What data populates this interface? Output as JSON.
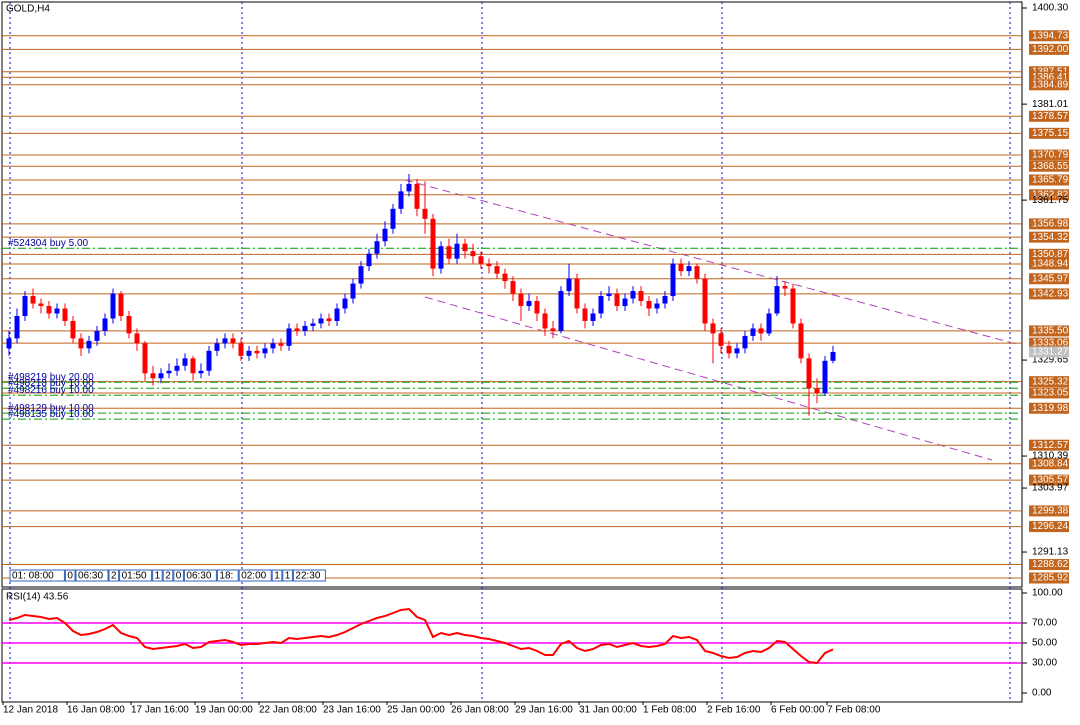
{
  "widget": [
    "01: 08:00",
    "0",
    "06:30",
    "2",
    "01:50",
    "1",
    "2",
    "0",
    "06:30",
    "18:",
    "02:00",
    "1",
    "1",
    "22:30"
  ],
  "chart_data": [
    {
      "type": "candlestick",
      "title": "GOLD,H4",
      "categories": [
        "12 Jan 2018",
        null,
        null,
        null,
        null,
        null,
        null,
        null,
        "16 Jan 08:00",
        null,
        null,
        null,
        null,
        null,
        null,
        null,
        "17 Jan 16:00",
        null,
        null,
        null,
        null,
        null,
        null,
        null,
        "19 Jan 00:00",
        null,
        null,
        null,
        null,
        null,
        null,
        null,
        "22 Jan 08:00",
        null,
        null,
        null,
        null,
        null,
        null,
        null,
        "23 Jan 16:00",
        null,
        null,
        null,
        null,
        null,
        null,
        null,
        "25 Jan 00:00",
        null,
        null,
        null,
        null,
        null,
        null,
        null,
        "26 Jan 08:00",
        null,
        null,
        null,
        null,
        null,
        null,
        null,
        "29 Jan 16:00",
        null,
        null,
        null,
        null,
        null,
        null,
        null,
        "31 Jan 00:00",
        null,
        null,
        null,
        null,
        null,
        null,
        null,
        "1 Feb 08:00",
        null,
        null,
        null,
        null,
        null,
        null,
        null,
        "2 Feb 16:00",
        null,
        null,
        null,
        null,
        null,
        null,
        null,
        "6 Feb 00:00",
        null,
        null,
        null,
        null,
        null,
        null,
        "7 Feb 08:00"
      ],
      "open": [
        1332.0,
        1334.0,
        1338.5,
        1342.5,
        1341.0,
        1340.5,
        1339.0,
        1340.0,
        1337.5,
        1334.0,
        1332.0,
        1333.5,
        1335.5,
        1338.0,
        1343.0,
        1338.5,
        1335.0,
        1333.0,
        1327.0,
        1326.0,
        1327.0,
        1327.5,
        1328.5,
        1330.0,
        1327.0,
        1327.5,
        1331.5,
        1333.0,
        1334.0,
        1333.0,
        1330.5,
        1331.5,
        1331.0,
        1332.0,
        1333.0,
        1332.5,
        1336.0,
        1335.5,
        1336.5,
        1337.0,
        1338.0,
        1337.5,
        1340.0,
        1342.0,
        1345.0,
        1348.5,
        1351.0,
        1353.5,
        1356.0,
        1360.0,
        1363.5,
        1365.0,
        1360.0,
        1358.0,
        1348.0,
        1352.5,
        1350.0,
        1353.0,
        1351.5,
        1350.5,
        1349.0,
        1348.5,
        1347.0,
        1345.5,
        1343.0,
        1340.5,
        1341.5,
        1339.0,
        1336.0,
        1335.5,
        1343.5,
        1346.0,
        1340.0,
        1337.5,
        1339.0,
        1342.5,
        1343.0,
        1340.5,
        1342.0,
        1343.5,
        1341.5,
        1340.0,
        1341.0,
        1342.5,
        1349.0,
        1347.5,
        1348.5,
        1346.0,
        1337.0,
        1335.0,
        1332.5,
        1331.0,
        1332.0,
        1334.5,
        1336.0,
        1335.0,
        1339.0,
        1344.5,
        1344.0,
        1337.0,
        1330.0,
        1324.0,
        1323.0,
        1329.5
      ],
      "high": [
        1335.5,
        1340.0,
        1343.5,
        1344.0,
        1342.0,
        1341.5,
        1341.0,
        1341.0,
        1338.5,
        1335.0,
        1334.5,
        1336.5,
        1339.0,
        1344.0,
        1343.5,
        1339.5,
        1336.0,
        1333.5,
        1328.5,
        1328.0,
        1329.0,
        1330.0,
        1331.0,
        1330.5,
        1329.0,
        1332.5,
        1334.0,
        1335.0,
        1335.0,
        1334.0,
        1332.5,
        1332.5,
        1333.0,
        1334.0,
        1334.0,
        1337.0,
        1337.0,
        1337.5,
        1338.0,
        1339.0,
        1339.0,
        1341.0,
        1343.0,
        1346.0,
        1349.5,
        1352.0,
        1355.0,
        1357.5,
        1361.0,
        1365.0,
        1367.0,
        1366.0,
        1365.5,
        1359.0,
        1353.5,
        1354.0,
        1355.0,
        1354.0,
        1353.0,
        1351.5,
        1350.0,
        1349.5,
        1348.0,
        1346.5,
        1344.0,
        1343.0,
        1342.5,
        1340.0,
        1337.5,
        1344.5,
        1349.0,
        1347.0,
        1341.0,
        1340.0,
        1343.5,
        1344.5,
        1344.0,
        1343.0,
        1344.5,
        1344.5,
        1342.5,
        1342.0,
        1343.5,
        1350.0,
        1350.0,
        1349.5,
        1349.0,
        1347.0,
        1338.0,
        1336.0,
        1333.5,
        1333.0,
        1335.5,
        1337.0,
        1337.0,
        1340.0,
        1346.5,
        1345.5,
        1345.0,
        1338.0,
        1331.0,
        1326.0,
        1330.5,
        1332.5
      ],
      "low": [
        1330.5,
        1333.0,
        1337.5,
        1340.0,
        1339.0,
        1338.0,
        1338.0,
        1336.5,
        1333.0,
        1330.5,
        1331.0,
        1332.5,
        1334.5,
        1337.0,
        1337.5,
        1334.0,
        1331.5,
        1325.5,
        1324.5,
        1325.0,
        1326.0,
        1326.5,
        1327.5,
        1325.5,
        1326.0,
        1326.5,
        1330.5,
        1332.0,
        1332.0,
        1329.5,
        1329.5,
        1330.0,
        1330.0,
        1331.0,
        1331.5,
        1331.5,
        1334.5,
        1334.5,
        1335.5,
        1336.0,
        1336.5,
        1336.5,
        1339.0,
        1341.0,
        1344.0,
        1347.5,
        1350.0,
        1352.5,
        1355.0,
        1359.0,
        1362.5,
        1358.5,
        1355.0,
        1346.5,
        1347.0,
        1349.0,
        1349.0,
        1350.0,
        1349.0,
        1348.0,
        1347.0,
        1346.0,
        1344.0,
        1341.5,
        1337.5,
        1339.5,
        1337.5,
        1334.5,
        1334.0,
        1335.0,
        1342.5,
        1339.0,
        1336.0,
        1336.5,
        1338.0,
        1341.5,
        1339.5,
        1339.5,
        1341.0,
        1340.5,
        1338.5,
        1339.0,
        1340.0,
        1341.5,
        1346.5,
        1346.5,
        1345.0,
        1335.5,
        1329.0,
        1331.0,
        1330.0,
        1330.0,
        1331.0,
        1333.5,
        1333.5,
        1334.5,
        1338.5,
        1342.5,
        1336.0,
        1329.0,
        1318.5,
        1321.0,
        1322.5,
        1329.0
      ],
      "close": [
        1334.0,
        1338.5,
        1342.5,
        1341.0,
        1340.5,
        1339.0,
        1340.0,
        1337.5,
        1334.0,
        1332.0,
        1333.5,
        1335.5,
        1338.0,
        1343.0,
        1338.5,
        1335.0,
        1333.0,
        1327.0,
        1326.0,
        1327.0,
        1327.5,
        1328.5,
        1330.0,
        1327.0,
        1327.5,
        1331.5,
        1333.0,
        1334.0,
        1333.0,
        1330.5,
        1331.5,
        1331.0,
        1332.0,
        1333.0,
        1332.5,
        1336.0,
        1335.5,
        1336.5,
        1337.0,
        1338.0,
        1337.5,
        1340.0,
        1342.0,
        1345.0,
        1348.5,
        1351.0,
        1353.5,
        1356.0,
        1360.0,
        1363.5,
        1365.0,
        1360.0,
        1358.0,
        1348.0,
        1352.5,
        1350.0,
        1353.0,
        1351.5,
        1350.5,
        1349.0,
        1348.5,
        1347.0,
        1345.5,
        1343.0,
        1340.5,
        1341.5,
        1339.0,
        1336.0,
        1335.5,
        1343.5,
        1346.0,
        1340.0,
        1337.5,
        1339.0,
        1342.5,
        1343.0,
        1340.5,
        1342.0,
        1343.5,
        1341.5,
        1340.0,
        1341.0,
        1342.5,
        1349.0,
        1347.5,
        1348.5,
        1346.0,
        1337.0,
        1335.0,
        1332.5,
        1331.0,
        1332.0,
        1334.5,
        1336.0,
        1335.0,
        1339.0,
        1344.5,
        1344.0,
        1337.0,
        1330.0,
        1324.0,
        1323.0,
        1329.5,
        1331.27
      ],
      "up_color": "#0000ff",
      "down_color": "#ff0000",
      "ylim": [
        1285.92,
        1400.3
      ],
      "yticks": [
        {
          "value": 1400.3,
          "label": "1400.30"
        },
        1381.01,
        1361.75,
        1329.65,
        1310.39,
        1303.97,
        1291.13
      ],
      "levels": [
        1394.73,
        {
          "value": 1392.0,
          "label": "1392.00"
        },
        1387.51,
        1386.41,
        1384.89,
        1378.57,
        1375.15,
        1370.79,
        1368.55,
        1365.79,
        1362.82,
        1356.98,
        1354.32,
        1350.87,
        1348.94,
        1345.97,
        1342.93,
        {
          "value": 1335.5,
          "label": "1335.50"
        },
        1333.06,
        1325.32,
        1323.05,
        1319.98,
        1312.57,
        1308.84,
        1305.57,
        1299.38,
        1296.24,
        1288.62,
        1285.92
      ],
      "level_color": "#c0641e",
      "orders": [
        {
          "label": "#524304 buy 5.00",
          "value": 1352.1
        },
        {
          "label": "#498219 buy 20.00",
          "value": 1325.2
        },
        {
          "label": "#498218 buy 10.00",
          "value": 1324.0
        },
        {
          "label": "#498216 buy 10.00",
          "value": 1322.6
        },
        {
          "label": "#498129 buy 10.00",
          "value": 1319.0
        },
        {
          "label": "#498135 buy 10.00",
          "value": 1317.8
        }
      ],
      "order_color": "#00a000"
    },
    {
      "type": "line",
      "title": "RSI(14) 43.56",
      "color": "#ff0000",
      "values": [
        73,
        75,
        78,
        77,
        76,
        74,
        75,
        70,
        62,
        58,
        59,
        61,
        64,
        68,
        60,
        57,
        55,
        46,
        44,
        45,
        46,
        47,
        49,
        45,
        46,
        51,
        52,
        53,
        51,
        48,
        49,
        49,
        50,
        51,
        50,
        55,
        54,
        55,
        56,
        57,
        56,
        58,
        61,
        65,
        69,
        72,
        75,
        77,
        80,
        83,
        84,
        76,
        73,
        56,
        60,
        58,
        60,
        58,
        57,
        55,
        54,
        52,
        50,
        47,
        44,
        45,
        42,
        38,
        38,
        49,
        52,
        45,
        42,
        44,
        48,
        49,
        46,
        48,
        50,
        47,
        46,
        47,
        49,
        57,
        55,
        56,
        53,
        42,
        40,
        37,
        35,
        36,
        40,
        42,
        41,
        45,
        52,
        51,
        44,
        37,
        31,
        30,
        40,
        43.56
      ],
      "ylim": [
        0,
        100
      ],
      "yticks": [
        {
          "value": 100,
          "label": "100.00"
        },
        {
          "value": 70,
          "label": "70.00"
        },
        {
          "value": 50,
          "label": "50.00"
        },
        {
          "value": 30,
          "label": "30.00"
        },
        {
          "value": 0,
          "label": "0.00"
        }
      ],
      "levels": [
        70,
        50,
        30
      ],
      "level_color": "#ff00ff"
    }
  ]
}
